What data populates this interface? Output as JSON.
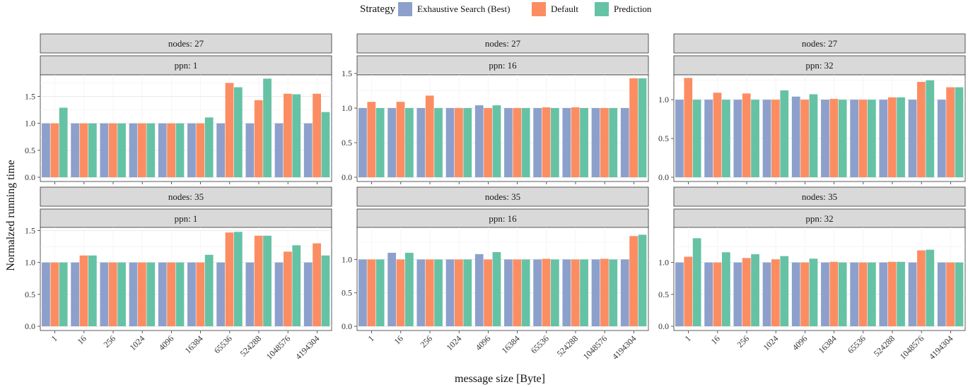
{
  "legend": {
    "title": "Strategy",
    "items": [
      {
        "name": "Exhaustive Search (Best)",
        "color": "#8DA0CB"
      },
      {
        "name": "Default",
        "color": "#FC8D62"
      },
      {
        "name": "Prediction",
        "color": "#66C2A5"
      }
    ]
  },
  "xlabel": "message size [Byte]",
  "ylabel": "Normalzed running time",
  "chart_data": {
    "type": "bar",
    "categories": [
      "1",
      "16",
      "256",
      "1024",
      "4096",
      "16384",
      "65536",
      "524288",
      "1048576",
      "4194304"
    ],
    "panels": [
      {
        "strip_top": "nodes: 27",
        "strip_bottom": "ppn: 1",
        "ylim": [
          0,
          1.9
        ],
        "yticks": [
          "0.0",
          "0.5",
          "1.0",
          "1.5"
        ],
        "series": [
          {
            "name": "Exhaustive Search (Best)",
            "values": [
              1,
              1,
              1,
              1,
              1,
              1,
              1,
              1,
              1,
              1
            ]
          },
          {
            "name": "Default",
            "values": [
              1,
              1,
              1,
              1,
              1,
              1,
              1.75,
              1.43,
              1.55,
              1.55
            ]
          },
          {
            "name": "Prediction",
            "values": [
              1.29,
              1,
              1,
              1,
              1,
              1.11,
              1.67,
              1.83,
              1.54,
              1.21
            ]
          }
        ]
      },
      {
        "strip_top": "nodes: 27",
        "strip_bottom": "ppn: 16",
        "ylim": [
          0,
          1.48
        ],
        "yticks": [
          "0.0",
          "0.5",
          "1.0",
          "1.5"
        ],
        "series": [
          {
            "name": "Exhaustive Search (Best)",
            "values": [
              1,
              1,
              1,
              1,
              1.04,
              1,
              1,
              1,
              1,
              1
            ]
          },
          {
            "name": "Default",
            "values": [
              1.09,
              1.09,
              1.18,
              1,
              1,
              1,
              1.01,
              1.01,
              1,
              1.43
            ]
          },
          {
            "name": "Prediction",
            "values": [
              1,
              1,
              1,
              1,
              1.04,
              1,
              1,
              1,
              1,
              1.43
            ]
          }
        ]
      },
      {
        "strip_top": "nodes: 27",
        "strip_bottom": "ppn: 32",
        "ylim": [
          0,
          1.32
        ],
        "yticks": [
          "0.0",
          "0.5",
          "1.0"
        ],
        "series": [
          {
            "name": "Exhaustive Search (Best)",
            "values": [
              1,
              1,
              1,
              1,
              1.04,
              1,
              1,
              1,
              1,
              1
            ]
          },
          {
            "name": "Default",
            "values": [
              1.28,
              1.09,
              1.08,
              1,
              1,
              1.01,
              1,
              1.03,
              1.23,
              1.16
            ]
          },
          {
            "name": "Prediction",
            "values": [
              1,
              1,
              1,
              1.12,
              1.07,
              1,
              1,
              1.03,
              1.25,
              1.16
            ]
          }
        ]
      },
      {
        "strip_top": "nodes: 35",
        "strip_bottom": "ppn: 1",
        "ylim": [
          0,
          1.55
        ],
        "yticks": [
          "0.0",
          "0.5",
          "1.0",
          "1.5"
        ],
        "series": [
          {
            "name": "Exhaustive Search (Best)",
            "values": [
              1,
              1,
              1,
              1,
              1,
              1,
              1,
              1,
              1,
              1
            ]
          },
          {
            "name": "Default",
            "values": [
              1,
              1.11,
              1,
              1,
              1,
              1,
              1.47,
              1.42,
              1.17,
              1.3
            ]
          },
          {
            "name": "Prediction",
            "values": [
              1,
              1.11,
              1,
              1,
              1,
              1.12,
              1.48,
              1.42,
              1.27,
              1.11
            ]
          }
        ]
      },
      {
        "strip_top": "nodes: 35",
        "strip_bottom": "ppn: 16",
        "ylim": [
          0,
          1.48
        ],
        "yticks": [
          "0.0",
          "0.5",
          "1.0"
        ],
        "series": [
          {
            "name": "Exhaustive Search (Best)",
            "values": [
              1,
              1.1,
              1,
              1,
              1.08,
              1,
              1,
              1,
              1,
              1
            ]
          },
          {
            "name": "Default",
            "values": [
              1,
              1,
              1,
              1,
              1,
              1,
              1.01,
              1,
              1.01,
              1.35
            ]
          },
          {
            "name": "Prediction",
            "values": [
              1,
              1.1,
              1,
              1,
              1.11,
              1,
              1,
              1,
              1,
              1.37
            ]
          }
        ]
      },
      {
        "strip_top": "nodes: 35",
        "strip_bottom": "ppn: 32",
        "ylim": [
          0,
          1.55
        ],
        "yticks": [
          "0.0",
          "0.5",
          "1.0"
        ],
        "series": [
          {
            "name": "Exhaustive Search (Best)",
            "values": [
              1,
              1,
              1,
              1,
              1,
              1,
              1,
              1,
              1,
              1
            ]
          },
          {
            "name": "Default",
            "values": [
              1.09,
              1,
              1.07,
              1.05,
              1,
              1.01,
              1,
              1.01,
              1.19,
              1
            ]
          },
          {
            "name": "Prediction",
            "values": [
              1.38,
              1.16,
              1.13,
              1.1,
              1.06,
              1,
              1,
              1.01,
              1.2,
              1
            ]
          }
        ]
      }
    ]
  }
}
